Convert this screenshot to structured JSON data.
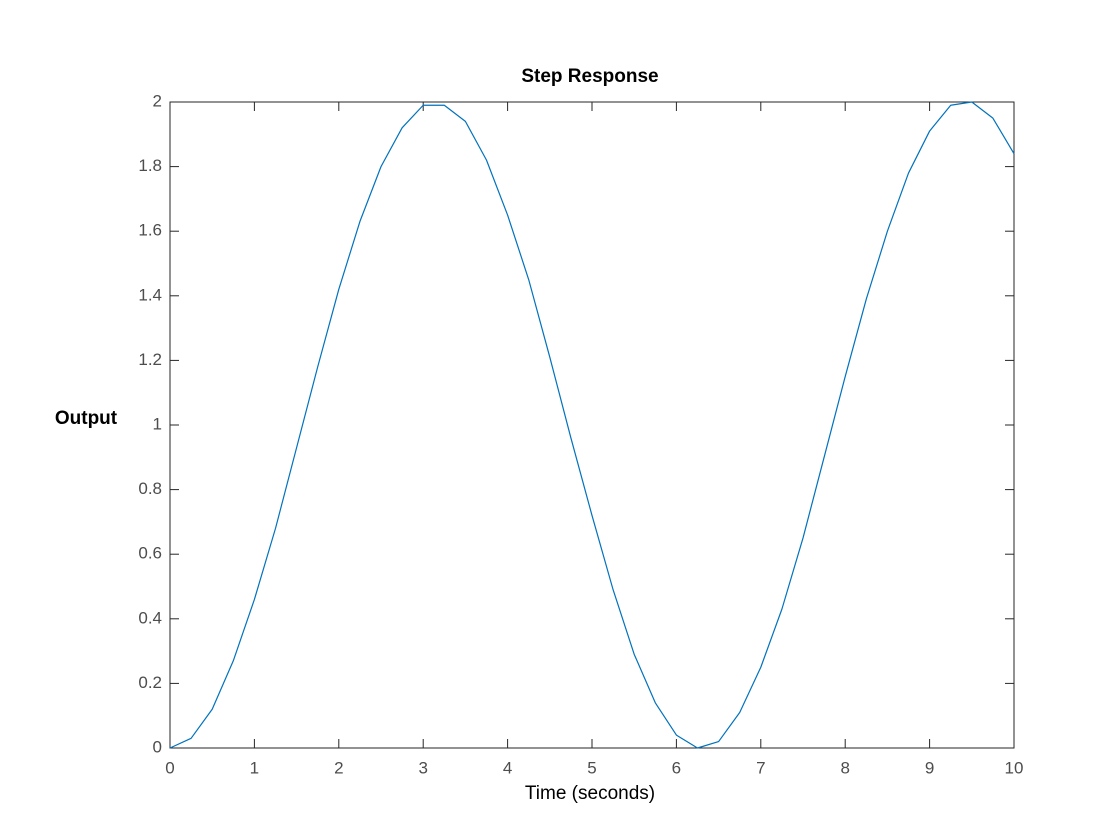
{
  "chart_data": {
    "type": "line",
    "title": "Step Response",
    "x_label": "Time (seconds)",
    "y_label": "Output",
    "x": [
      0,
      0.25,
      0.5,
      0.75,
      1,
      1.25,
      1.5,
      1.75,
      2,
      2.25,
      2.5,
      2.75,
      3,
      3.25,
      3.5,
      3.75,
      4,
      4.25,
      4.5,
      4.75,
      5,
      5.25,
      5.5,
      5.75,
      6,
      6.25,
      6.5,
      6.75,
      7,
      7.25,
      7.5,
      7.75,
      8,
      8.25,
      8.5,
      8.75,
      9,
      9.25,
      9.5,
      9.75,
      10
    ],
    "values": [
      0,
      0.03,
      0.12,
      0.27,
      0.46,
      0.68,
      0.93,
      1.18,
      1.42,
      1.63,
      1.8,
      1.92,
      1.99,
      1.99,
      1.94,
      1.82,
      1.65,
      1.45,
      1.21,
      0.96,
      0.72,
      0.49,
      0.29,
      0.14,
      0.04,
      0,
      0.02,
      0.11,
      0.25,
      0.43,
      0.65,
      0.9,
      1.15,
      1.39,
      1.6,
      1.78,
      1.91,
      1.99,
      2,
      1.95,
      1.84
    ],
    "color": "#0072bd",
    "xlim": [
      0,
      10
    ],
    "xticks": [
      0,
      1,
      2,
      3,
      4,
      5,
      6,
      7,
      8,
      9,
      10
    ],
    "ylim": [
      0,
      2
    ],
    "yticks": [
      0,
      0.2,
      0.4,
      0.6,
      0.8,
      1,
      1.2,
      1.4,
      1.6,
      1.8,
      2
    ]
  }
}
